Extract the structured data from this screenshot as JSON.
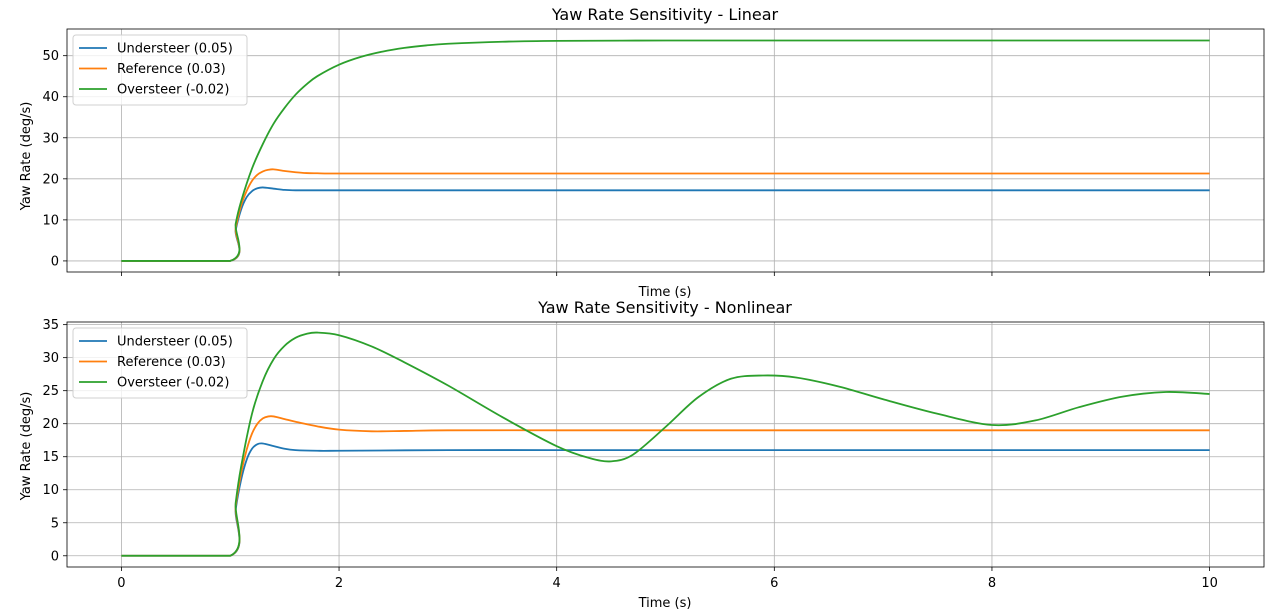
{
  "chart_data": [
    {
      "type": "line",
      "title": "Yaw Rate Sensitivity - Linear",
      "xlabel": "Time (s)",
      "ylabel": "Yaw Rate (deg/s)",
      "xlim": [
        -0.5,
        10.5
      ],
      "ylim": [
        -2.7,
        56.5
      ],
      "xticks": [
        0,
        2,
        4,
        6,
        8,
        10
      ],
      "xtick_labels_shown": false,
      "yticks": [
        0,
        10,
        20,
        30,
        40,
        50
      ],
      "grid": true,
      "legend_position": "top-left",
      "series": [
        {
          "name": "Understeer (0.05)",
          "color": "#1f77b4",
          "x": [
            0,
            1.0,
            1.05,
            1.1,
            1.15,
            1.2,
            1.25,
            1.3,
            1.4,
            1.5,
            1.6,
            1.8,
            2.0,
            3,
            4,
            5,
            6,
            7,
            8,
            9,
            10
          ],
          "y": [
            0,
            0,
            7.5,
            12.5,
            15.5,
            17.0,
            17.7,
            17.9,
            17.6,
            17.3,
            17.2,
            17.2,
            17.2,
            17.2,
            17.2,
            17.2,
            17.2,
            17.2,
            17.2,
            17.2,
            17.2
          ]
        },
        {
          "name": "Reference (0.03)",
          "color": "#ff7f0e",
          "x": [
            0,
            1.0,
            1.05,
            1.1,
            1.15,
            1.2,
            1.25,
            1.3,
            1.35,
            1.4,
            1.5,
            1.6,
            1.7,
            1.8,
            2.0,
            3,
            4,
            5,
            6,
            7,
            8,
            9,
            10
          ],
          "y": [
            0,
            0,
            8,
            13.5,
            17.0,
            19.5,
            21.0,
            21.8,
            22.2,
            22.3,
            21.9,
            21.6,
            21.4,
            21.35,
            21.3,
            21.3,
            21.3,
            21.3,
            21.3,
            21.3,
            21.3,
            21.3,
            21.3
          ]
        },
        {
          "name": "Oversteer (-0.02)",
          "color": "#2ca02c",
          "x": [
            0,
            1.0,
            1.05,
            1.1,
            1.2,
            1.3,
            1.4,
            1.5,
            1.6,
            1.7,
            1.8,
            2.0,
            2.2,
            2.4,
            2.6,
            2.8,
            3.0,
            3.5,
            4,
            5,
            6,
            7,
            8,
            9,
            10
          ],
          "y": [
            0,
            0,
            9,
            14.5,
            22.5,
            28.5,
            33.5,
            37.3,
            40.5,
            43.0,
            45.0,
            47.8,
            49.7,
            51.0,
            51.9,
            52.5,
            52.9,
            53.4,
            53.6,
            53.7,
            53.7,
            53.7,
            53.7,
            53.7,
            53.7
          ]
        }
      ]
    },
    {
      "type": "line",
      "title": "Yaw Rate Sensitivity - Nonlinear",
      "xlabel": "Time (s)",
      "ylabel": "Yaw Rate (deg/s)",
      "xlim": [
        -0.5,
        10.5
      ],
      "ylim": [
        -1.7,
        35.4
      ],
      "xticks": [
        0,
        2,
        4,
        6,
        8,
        10
      ],
      "xtick_labels_shown": true,
      "yticks": [
        0,
        5,
        10,
        15,
        20,
        25,
        30,
        35
      ],
      "grid": true,
      "legend_position": "top-left",
      "series": [
        {
          "name": "Understeer (0.05)",
          "color": "#1f77b4",
          "x": [
            0,
            1.0,
            1.05,
            1.1,
            1.15,
            1.2,
            1.25,
            1.3,
            1.4,
            1.5,
            1.6,
            1.8,
            2.0,
            3,
            4,
            5,
            6,
            7,
            8,
            9,
            10
          ],
          "y": [
            0,
            0,
            7,
            11.5,
            14.5,
            16.2,
            16.9,
            17.0,
            16.6,
            16.2,
            16.0,
            15.9,
            15.9,
            16.0,
            16.0,
            16.0,
            16.0,
            16.0,
            16.0,
            16.0,
            16.0
          ]
        },
        {
          "name": "Reference (0.03)",
          "color": "#ff7f0e",
          "x": [
            0,
            1.0,
            1.05,
            1.1,
            1.15,
            1.2,
            1.25,
            1.3,
            1.35,
            1.4,
            1.5,
            1.6,
            1.8,
            2.0,
            2.3,
            2.6,
            3.0,
            4,
            5,
            6,
            7,
            8,
            9,
            10
          ],
          "y": [
            0,
            0,
            7.5,
            12.5,
            16.0,
            18.5,
            20.0,
            20.8,
            21.1,
            21.1,
            20.7,
            20.3,
            19.6,
            19.1,
            18.85,
            18.9,
            19.0,
            19.0,
            19.0,
            19.0,
            19.0,
            19.0,
            19.0,
            19.0
          ]
        },
        {
          "name": "Oversteer (-0.02)",
          "color": "#2ca02c",
          "x": [
            0,
            1.0,
            1.05,
            1.1,
            1.2,
            1.3,
            1.4,
            1.5,
            1.6,
            1.7,
            1.8,
            2.0,
            2.3,
            2.6,
            3.0,
            3.5,
            4.0,
            4.3,
            4.5,
            4.7,
            5.0,
            5.3,
            5.6,
            5.9,
            6.2,
            6.6,
            7.0,
            7.5,
            8.0,
            8.4,
            8.8,
            9.2,
            9.6,
            10.0
          ],
          "y": [
            0,
            0,
            8,
            13.5,
            21.5,
            26.5,
            29.8,
            31.8,
            33.0,
            33.6,
            33.8,
            33.4,
            31.7,
            29.3,
            25.8,
            21.0,
            16.6,
            14.8,
            14.3,
            15.3,
            19.5,
            24.0,
            26.8,
            27.3,
            27.0,
            25.6,
            23.7,
            21.5,
            19.8,
            20.5,
            22.5,
            24.1,
            24.8,
            24.5
          ]
        }
      ]
    }
  ]
}
